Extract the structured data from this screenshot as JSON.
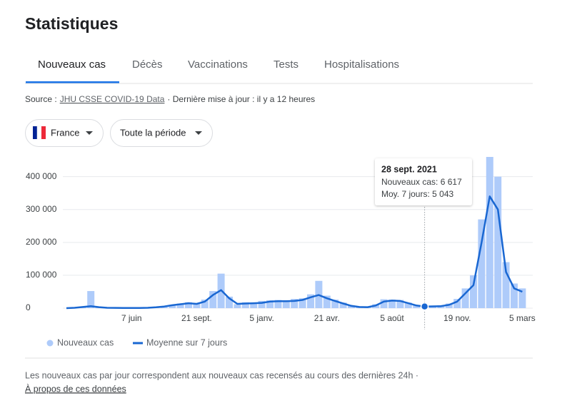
{
  "header": {
    "title": "Statistiques"
  },
  "tabs": [
    "Nouveaux cas",
    "Décès",
    "Vaccinations",
    "Tests",
    "Hospitalisations"
  ],
  "source": {
    "prefix": "Source :",
    "link": "JHU CSSE COVID-19 Data",
    "suffix": "· Dernière mise à jour : il y a 12 heures"
  },
  "filters": [
    "France",
    "Toute la période"
  ],
  "tooltip": {
    "date": "28 sept. 2021",
    "lines": [
      "Nouveaux cas: 6 617",
      "Moy. 7 jours: 5 043"
    ]
  },
  "footer": {
    "note": "Les nouveaux cas par jour correspondent aux nouveaux cas recensés au cours des dernières 24h  ·",
    "link": "À propos de ces données"
  },
  "chart_data": {
    "type": "bar_line",
    "categories": [
      null,
      null,
      null,
      null,
      null,
      null,
      null,
      null,
      "7 juin",
      null,
      null,
      null,
      null,
      null,
      null,
      null,
      "21 sept.",
      null,
      null,
      null,
      null,
      null,
      null,
      null,
      "5 janv.",
      null,
      null,
      null,
      null,
      null,
      null,
      null,
      "21 avr.",
      null,
      null,
      null,
      null,
      null,
      null,
      null,
      "5 août",
      null,
      null,
      null,
      null,
      null,
      null,
      null,
      "19 nov.",
      null,
      null,
      null,
      null,
      null,
      null,
      null,
      "5 mars"
    ],
    "series": [
      {
        "name": "Nouveaux cas",
        "type": "bar",
        "color": "#aecbfa",
        "values": [
          0,
          1500,
          4500,
          52000,
          2500,
          800,
          700,
          400,
          500,
          600,
          1200,
          3000,
          6000,
          10000,
          14000,
          18000,
          15000,
          26000,
          52000,
          105000,
          35000,
          12000,
          18000,
          17000,
          22000,
          24000,
          25000,
          23000,
          28000,
          30000,
          42000,
          83000,
          38000,
          26000,
          17000,
          8000,
          4000,
          3500,
          12000,
          27000,
          26000,
          25000,
          17000,
          9000,
          6617,
          7000,
          9000,
          14000,
          28000,
          60000,
          100000,
          270000,
          460000,
          400000,
          140000,
          75000,
          60000
        ]
      },
      {
        "name": "Moyenne sur 7 jours",
        "type": "line",
        "color": "#1967d2",
        "values": [
          0,
          1000,
          3500,
          6000,
          3000,
          1000,
          800,
          500,
          400,
          500,
          1000,
          2500,
          5000,
          9000,
          12000,
          15000,
          13000,
          20000,
          40000,
          55000,
          30000,
          13000,
          14000,
          15000,
          16000,
          20000,
          21000,
          21000,
          22000,
          25000,
          33000,
          40000,
          30000,
          22000,
          14000,
          7000,
          3500,
          3000,
          8000,
          20000,
          23000,
          22000,
          15000,
          8000,
          5043,
          5500,
          6000,
          10000,
          20000,
          45000,
          70000,
          200000,
          340000,
          300000,
          110000,
          60000,
          50000
        ]
      }
    ],
    "ylim": [
      0,
      460000
    ],
    "yticks": [
      0,
      {
        "value": 100000,
        "label": "100 000"
      },
      {
        "value": 200000,
        "label": "200 000"
      },
      {
        "value": 300000,
        "label": "300 000"
      },
      {
        "value": 400000,
        "label": "400 000"
      }
    ],
    "grid": true
  }
}
